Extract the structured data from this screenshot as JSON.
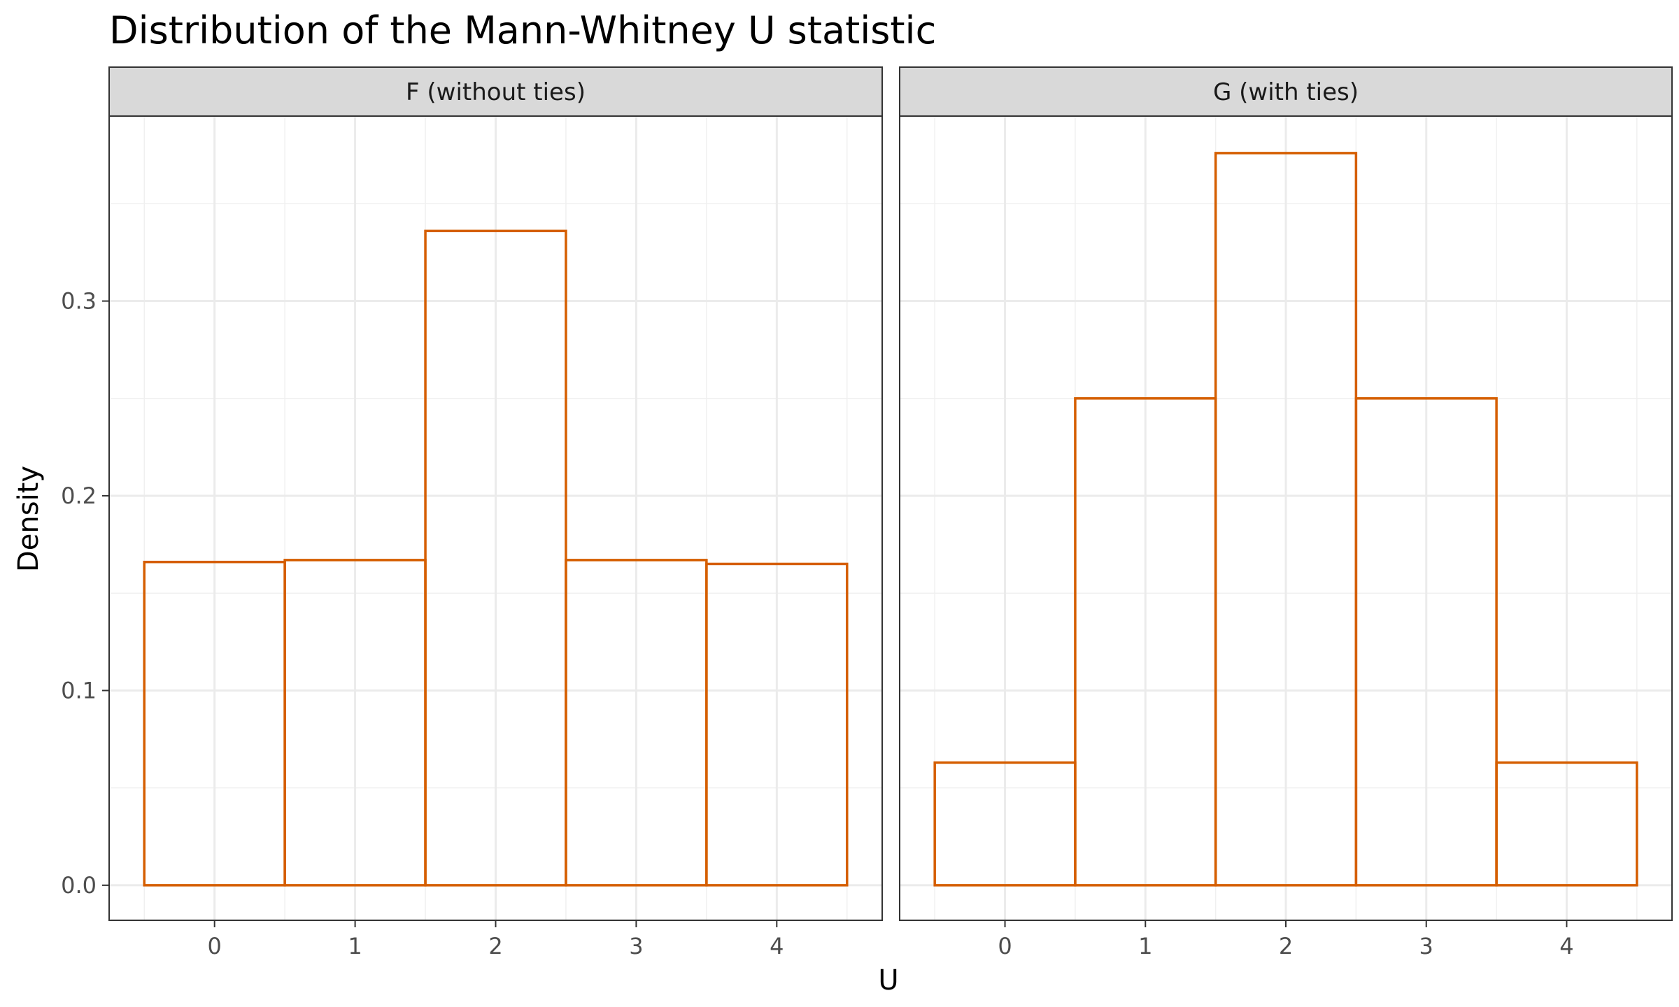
{
  "chart_data": {
    "type": "bar",
    "title": "Distribution of the Mann-Whitney U statistic",
    "xlabel": "U",
    "ylabel": "Density",
    "xlim": [
      -0.75,
      4.75
    ],
    "ylim": [
      -0.018,
      0.395
    ],
    "x_ticks": [
      0,
      1,
      2,
      3,
      4
    ],
    "y_ticks": [
      0.0,
      0.1,
      0.2,
      0.3
    ],
    "y_tick_labels": [
      "0.0",
      "0.1",
      "0.2",
      "0.3"
    ],
    "grid": true,
    "bar_outline_color": "#D55E00",
    "bar_fill": "none",
    "panels": [
      {
        "strip_label": "F (without ties)",
        "categories": [
          0,
          1,
          2,
          3,
          4
        ],
        "values": [
          0.166,
          0.167,
          0.336,
          0.167,
          0.165
        ]
      },
      {
        "strip_label": "G (with ties)",
        "categories": [
          0,
          1,
          2,
          3,
          4
        ],
        "values": [
          0.063,
          0.25,
          0.376,
          0.25,
          0.063
        ]
      }
    ]
  }
}
